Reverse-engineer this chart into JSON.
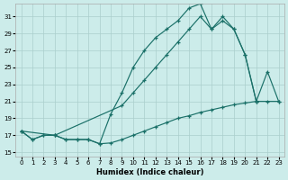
{
  "bg_color": "#ccecea",
  "grid_color": "#aacfcc",
  "line_color": "#1a7068",
  "xlabel": "Humidex (Indice chaleur)",
  "xlim": [
    -0.5,
    23.5
  ],
  "ylim": [
    14.5,
    32.5
  ],
  "xticks": [
    0,
    1,
    2,
    3,
    4,
    5,
    6,
    7,
    8,
    9,
    10,
    11,
    12,
    13,
    14,
    15,
    16,
    17,
    18,
    19,
    20,
    21,
    22,
    23
  ],
  "yticks": [
    15,
    17,
    19,
    21,
    23,
    25,
    27,
    29,
    31
  ],
  "line1_x": [
    0,
    1,
    2,
    3,
    4,
    5,
    6,
    7,
    8,
    9,
    10,
    11,
    12,
    13,
    14,
    15,
    16,
    17,
    18,
    19,
    20,
    21
  ],
  "line1_y": [
    17.5,
    16.5,
    17.0,
    17.0,
    16.5,
    16.5,
    16.5,
    16.0,
    19.5,
    22.0,
    25.0,
    27.0,
    28.5,
    29.5,
    30.5,
    32.0,
    32.5,
    29.5,
    31.0,
    29.5,
    26.5,
    21.0
  ],
  "line2_x": [
    0,
    3,
    9,
    10,
    11,
    12,
    13,
    14,
    15,
    16,
    17,
    18,
    19,
    20,
    21,
    22,
    23
  ],
  "line2_y": [
    17.5,
    17.0,
    20.5,
    22.0,
    23.5,
    25.0,
    26.5,
    28.0,
    29.5,
    31.0,
    29.5,
    30.5,
    29.5,
    26.5,
    21.0,
    24.5,
    21.0
  ],
  "line3_x": [
    0,
    1,
    2,
    3,
    4,
    5,
    6,
    7,
    8,
    9,
    10,
    11,
    12,
    13,
    14,
    15,
    16,
    17,
    18,
    19,
    20,
    21,
    22,
    23
  ],
  "line3_y": [
    17.5,
    16.5,
    17.0,
    17.0,
    16.5,
    16.5,
    16.5,
    16.0,
    16.1,
    16.5,
    17.0,
    17.5,
    18.0,
    18.5,
    19.0,
    19.3,
    19.7,
    20.0,
    20.3,
    20.6,
    20.8,
    21.0,
    21.0,
    21.0
  ]
}
